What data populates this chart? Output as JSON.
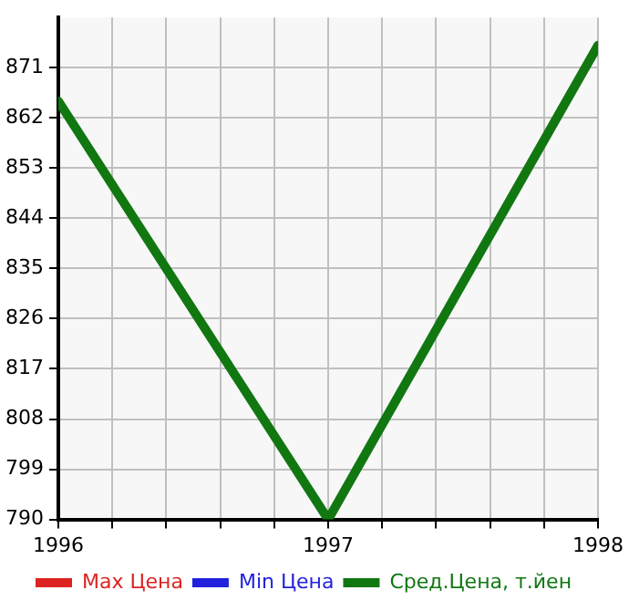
{
  "chart_data": {
    "type": "line",
    "x": [
      1996,
      1997,
      1998
    ],
    "series": [
      {
        "name": "Max Цена",
        "color": "#dd2222",
        "values": [
          null,
          null,
          null
        ]
      },
      {
        "name": "Min Цена",
        "color": "#2222dd",
        "values": [
          null,
          null,
          null
        ]
      },
      {
        "name": "Сред.Цена, т.йен",
        "color": "#117711",
        "values": [
          865,
          790,
          875
        ]
      }
    ],
    "xlim": [
      1996,
      1998
    ],
    "xticks": [
      1996,
      {
        "value": 1996.2,
        "label": null
      },
      {
        "value": 1996.4,
        "label": null
      },
      {
        "value": 1996.6,
        "label": null
      },
      {
        "value": 1996.8,
        "label": null
      },
      1997,
      {
        "value": 1997.2,
        "label": null
      },
      {
        "value": 1997.4,
        "label": null
      },
      {
        "value": 1997.6,
        "label": null
      },
      {
        "value": 1997.8,
        "label": null
      },
      1998
    ],
    "ylim": [
      790,
      880
    ],
    "yticks": [
      790,
      799,
      808,
      817,
      826,
      835,
      844,
      853,
      862,
      871
    ],
    "grid": true,
    "legend": "bottom",
    "marker": "none",
    "line_style": "solid"
  }
}
